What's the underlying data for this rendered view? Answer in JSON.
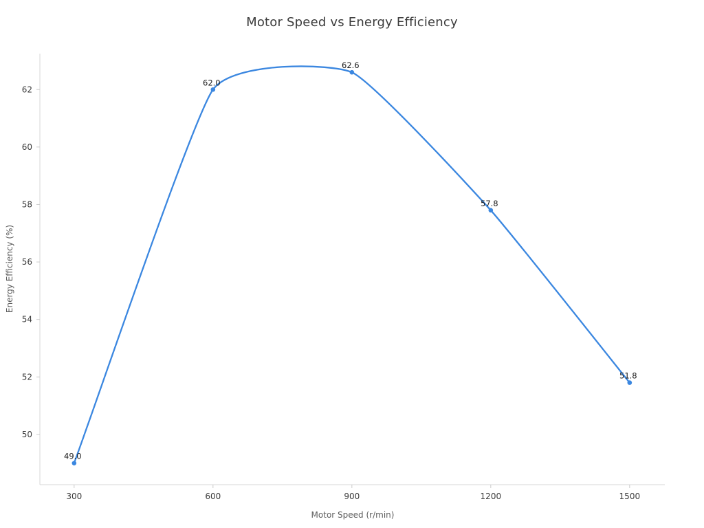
{
  "chart_data": {
    "type": "line",
    "title": "Motor Speed vs Energy Efficiency",
    "xlabel": "Motor Speed (r/min)",
    "ylabel": "Energy Efficiency (%)",
    "x": [
      300,
      600,
      900,
      1200,
      1500
    ],
    "y": [
      49.0,
      62.0,
      62.6,
      57.8,
      51.8
    ],
    "point_labels": [
      "49.0",
      "62.0",
      "62.6",
      "57.8",
      "51.8"
    ],
    "xticks": [
      300,
      600,
      900,
      1200,
      1500
    ],
    "xtick_labels": [
      "300",
      "600",
      "900",
      "1200",
      "1500"
    ],
    "yticks": [
      50,
      52,
      54,
      56,
      58,
      60,
      62
    ],
    "ytick_labels": [
      "50",
      "52",
      "54",
      "56",
      "58",
      "60",
      "62"
    ],
    "xlim": [
      226,
      1576
    ],
    "ylim": [
      48.25,
      63.25
    ],
    "smooth": true,
    "grid": false,
    "legend": null,
    "style": {
      "line_color": "#3b87e0",
      "marker_color": "#3b87e0",
      "spine_color": "#d7d7d7",
      "tick_color": "#cccccc",
      "tick_label_color": "#3a3a3a",
      "axis_title_color": "#5c5c5c",
      "title_color": "#3a3a3a",
      "point_label_color": "#1a1a1a",
      "background": "#ffffff"
    }
  }
}
